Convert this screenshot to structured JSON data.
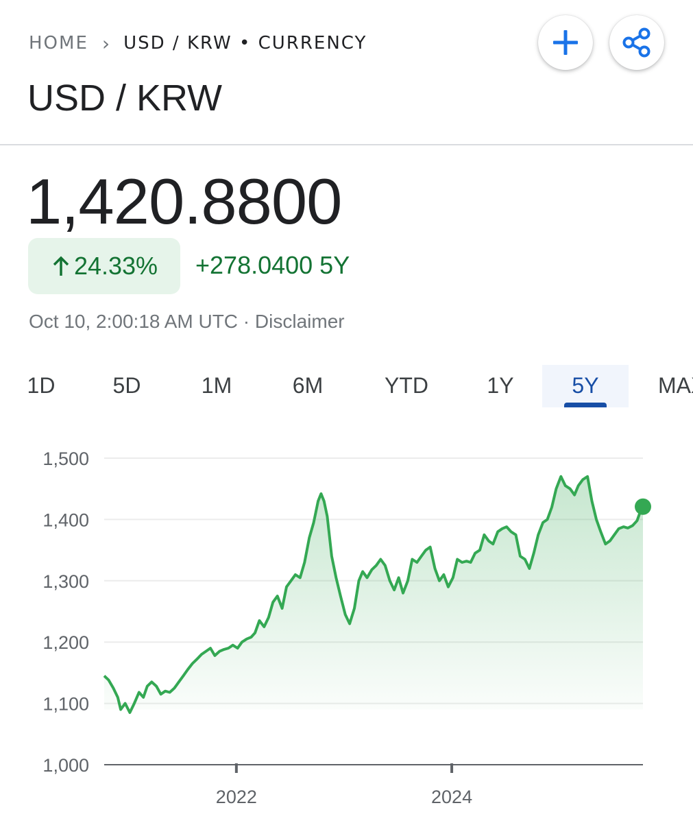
{
  "breadcrumb": {
    "home": "HOME",
    "separator": "›",
    "current": "USD / KRW • CURRENCY"
  },
  "actions": {
    "add_icon": "plus-icon",
    "share_icon": "share-icon"
  },
  "title": "USD / KRW",
  "quote": {
    "price": "1,420.8800",
    "change_percent": "24.33%",
    "change_arrow": "arrow-up-icon",
    "change_absolute": "+278.0400 5Y",
    "timestamp": "Oct 10, 2:00:18 AM UTC",
    "disclaimer_separator": " · ",
    "disclaimer": "Disclaimer"
  },
  "tabs": [
    {
      "label": "1D"
    },
    {
      "label": "5D"
    },
    {
      "label": "1M"
    },
    {
      "label": "6M"
    },
    {
      "label": "YTD"
    },
    {
      "label": "1Y"
    },
    {
      "label": "5Y",
      "active": true
    },
    {
      "label": "MAX"
    }
  ],
  "colors": {
    "up_green": "#137333",
    "line_green": "#34a853",
    "pill_bg": "#e6f4ea",
    "active_tab": "#174ea6",
    "action_blue": "#1a73e8"
  },
  "chart_data": {
    "type": "area",
    "title": "",
    "xlabel": "",
    "ylabel": "",
    "ylim": [
      1000,
      1500
    ],
    "xlim": [
      "2020-10-10",
      "2025-10-10"
    ],
    "yticks": [
      "1,000",
      "1,100",
      "1,200",
      "1,300",
      "1,400",
      "1,500"
    ],
    "ytick_values": [
      1000,
      1100,
      1200,
      1300,
      1400,
      1500
    ],
    "xticks": [
      "2022",
      "2024"
    ],
    "xtick_values": [
      "2022-01-01",
      "2024-01-01"
    ],
    "grid": true,
    "series": [
      {
        "values": [
          [
            "2020-10-10",
            1145
          ],
          [
            "2020-10-25",
            1138
          ],
          [
            "2020-11-10",
            1125
          ],
          [
            "2020-11-25",
            1110
          ],
          [
            "2020-12-05",
            1090
          ],
          [
            "2020-12-20",
            1100
          ],
          [
            "2021-01-05",
            1085
          ],
          [
            "2021-01-20",
            1100
          ],
          [
            "2021-02-05",
            1118
          ],
          [
            "2021-02-20",
            1110
          ],
          [
            "2021-03-05",
            1128
          ],
          [
            "2021-03-20",
            1135
          ],
          [
            "2021-04-05",
            1128
          ],
          [
            "2021-04-20",
            1115
          ],
          [
            "2021-05-05",
            1120
          ],
          [
            "2021-05-20",
            1118
          ],
          [
            "2021-06-05",
            1125
          ],
          [
            "2021-06-20",
            1135
          ],
          [
            "2021-07-05",
            1145
          ],
          [
            "2021-07-20",
            1155
          ],
          [
            "2021-08-05",
            1165
          ],
          [
            "2021-08-20",
            1172
          ],
          [
            "2021-09-05",
            1180
          ],
          [
            "2021-09-20",
            1185
          ],
          [
            "2021-10-05",
            1190
          ],
          [
            "2021-10-20",
            1178
          ],
          [
            "2021-11-05",
            1185
          ],
          [
            "2021-11-20",
            1188
          ],
          [
            "2021-12-05",
            1190
          ],
          [
            "2021-12-20",
            1195
          ],
          [
            "2022-01-05",
            1190
          ],
          [
            "2022-01-20",
            1200
          ],
          [
            "2022-02-05",
            1205
          ],
          [
            "2022-02-20",
            1208
          ],
          [
            "2022-03-05",
            1215
          ],
          [
            "2022-03-20",
            1235
          ],
          [
            "2022-04-05",
            1225
          ],
          [
            "2022-04-20",
            1240
          ],
          [
            "2022-05-05",
            1265
          ],
          [
            "2022-05-20",
            1275
          ],
          [
            "2022-06-05",
            1255
          ],
          [
            "2022-06-20",
            1290
          ],
          [
            "2022-07-05",
            1300
          ],
          [
            "2022-07-20",
            1310
          ],
          [
            "2022-08-05",
            1305
          ],
          [
            "2022-08-20",
            1330
          ],
          [
            "2022-09-05",
            1370
          ],
          [
            "2022-09-20",
            1395
          ],
          [
            "2022-10-05",
            1430
          ],
          [
            "2022-10-15",
            1442
          ],
          [
            "2022-10-25",
            1430
          ],
          [
            "2022-11-05",
            1405
          ],
          [
            "2022-11-20",
            1340
          ],
          [
            "2022-12-05",
            1305
          ],
          [
            "2022-12-20",
            1275
          ],
          [
            "2023-01-05",
            1245
          ],
          [
            "2023-01-20",
            1230
          ],
          [
            "2023-02-05",
            1255
          ],
          [
            "2023-02-20",
            1300
          ],
          [
            "2023-03-05",
            1315
          ],
          [
            "2023-03-20",
            1305
          ],
          [
            "2023-04-05",
            1318
          ],
          [
            "2023-04-20",
            1325
          ],
          [
            "2023-05-05",
            1335
          ],
          [
            "2023-05-20",
            1325
          ],
          [
            "2023-06-05",
            1300
          ],
          [
            "2023-06-20",
            1285
          ],
          [
            "2023-07-05",
            1305
          ],
          [
            "2023-07-20",
            1280
          ],
          [
            "2023-08-05",
            1300
          ],
          [
            "2023-08-20",
            1335
          ],
          [
            "2023-09-05",
            1330
          ],
          [
            "2023-09-20",
            1340
          ],
          [
            "2023-10-05",
            1350
          ],
          [
            "2023-10-20",
            1355
          ],
          [
            "2023-11-05",
            1320
          ],
          [
            "2023-11-20",
            1300
          ],
          [
            "2023-12-05",
            1310
          ],
          [
            "2023-12-20",
            1290
          ],
          [
            "2024-01-05",
            1305
          ],
          [
            "2024-01-20",
            1335
          ],
          [
            "2024-02-05",
            1330
          ],
          [
            "2024-02-20",
            1332
          ],
          [
            "2024-03-05",
            1330
          ],
          [
            "2024-03-20",
            1345
          ],
          [
            "2024-04-05",
            1350
          ],
          [
            "2024-04-20",
            1375
          ],
          [
            "2024-05-05",
            1365
          ],
          [
            "2024-05-20",
            1360
          ],
          [
            "2024-06-05",
            1380
          ],
          [
            "2024-06-20",
            1385
          ],
          [
            "2024-07-05",
            1388
          ],
          [
            "2024-07-20",
            1380
          ],
          [
            "2024-08-05",
            1375
          ],
          [
            "2024-08-20",
            1340
          ],
          [
            "2024-09-05",
            1335
          ],
          [
            "2024-09-20",
            1320
          ],
          [
            "2024-10-05",
            1345
          ],
          [
            "2024-10-20",
            1375
          ],
          [
            "2024-11-05",
            1395
          ],
          [
            "2024-11-20",
            1400
          ],
          [
            "2024-12-05",
            1420
          ],
          [
            "2024-12-20",
            1450
          ],
          [
            "2025-01-05",
            1470
          ],
          [
            "2025-01-20",
            1455
          ],
          [
            "2025-02-05",
            1450
          ],
          [
            "2025-02-20",
            1440
          ],
          [
            "2025-03-05",
            1455
          ],
          [
            "2025-03-20",
            1465
          ],
          [
            "2025-04-05",
            1470
          ],
          [
            "2025-04-20",
            1430
          ],
          [
            "2025-05-05",
            1400
          ],
          [
            "2025-05-20",
            1380
          ],
          [
            "2025-06-05",
            1360
          ],
          [
            "2025-06-20",
            1365
          ],
          [
            "2025-07-05",
            1375
          ],
          [
            "2025-07-20",
            1385
          ],
          [
            "2025-08-05",
            1388
          ],
          [
            "2025-08-20",
            1386
          ],
          [
            "2025-09-05",
            1390
          ],
          [
            "2025-09-20",
            1398
          ],
          [
            "2025-10-05",
            1418
          ],
          [
            "2025-10-10",
            1420.88
          ]
        ]
      }
    ]
  }
}
